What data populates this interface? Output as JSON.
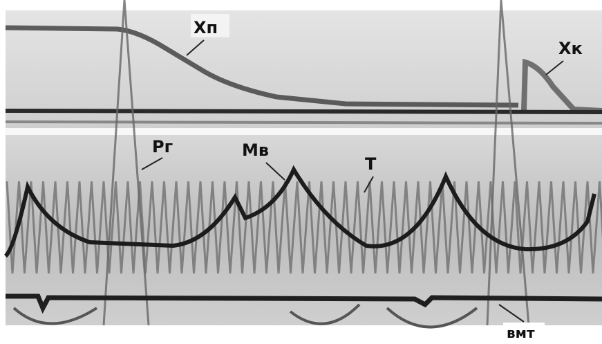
{
  "labels": {
    "xp": "Хп",
    "xk": "Хк",
    "pg": "Рг",
    "mv": "Мв",
    "t": "Т",
    "vmt": "вмт"
  }
}
